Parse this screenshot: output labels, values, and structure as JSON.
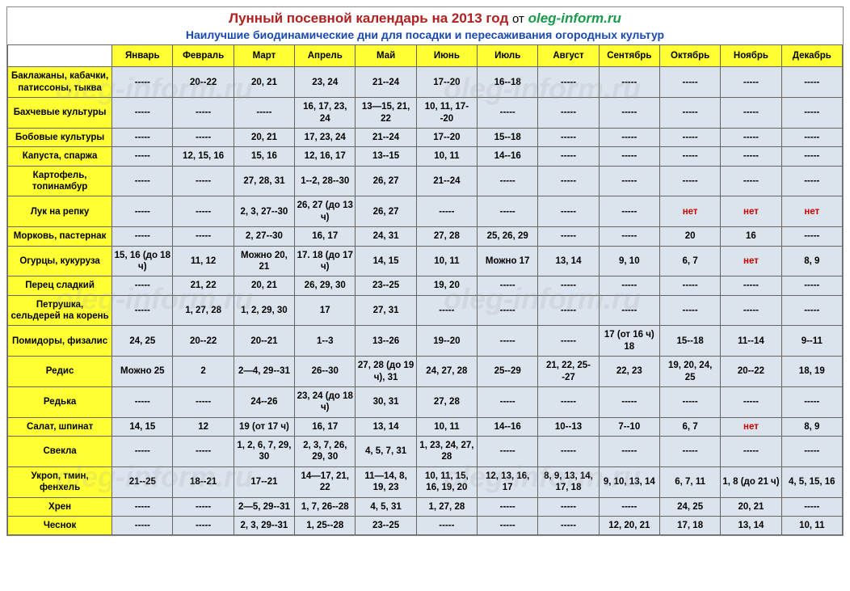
{
  "title": {
    "main": "Лунный посевной календарь на 2013 год",
    "from": "от",
    "site": "oleg-inform.ru",
    "title_color": "#b02020",
    "site_color": "#1a9a4a"
  },
  "subtitle": "Наилучшие биодинамические дни для посадки и пересаживания огородных культур",
  "subtitle_color": "#1a4ab0",
  "header_bg": "#ffff33",
  "cell_bg": "#dbe3ec",
  "net_color": "#cc0000",
  "border_color": "#666666",
  "font_family": "Arial",
  "dash": "-----",
  "months": [
    "Январь",
    "Февраль",
    "Март",
    "Апрель",
    "Май",
    "Июнь",
    "Июль",
    "Август",
    "Сентябрь",
    "Октябрь",
    "Ноябрь",
    "Декабрь"
  ],
  "rows": [
    {
      "crop": "Баклажаны, кабачки, патиссоны, тыква",
      "cells": [
        "-----",
        "20--22",
        "20, 21",
        "23, 24",
        "21--24",
        "17--20",
        "16--18",
        "-----",
        "-----",
        "-----",
        "-----",
        "-----"
      ]
    },
    {
      "crop": "Бахчевые культуры",
      "cells": [
        "-----",
        "-----",
        "-----",
        "16, 17, 23, 24",
        "13—15, 21, 22",
        "10, 11, 17--20",
        "-----",
        "-----",
        "-----",
        "-----",
        "-----",
        "-----"
      ]
    },
    {
      "crop": "Бобовые культуры",
      "cells": [
        "-----",
        "-----",
        "20, 21",
        "17, 23, 24",
        "21--24",
        "17--20",
        "15--18",
        "-----",
        "-----",
        "-----",
        "-----",
        "-----"
      ]
    },
    {
      "crop": "Капуста, спаржа",
      "cells": [
        "-----",
        "12, 15, 16",
        "15, 16",
        "12, 16, 17",
        "13--15",
        "10, 11",
        "14--16",
        "-----",
        "-----",
        "-----",
        "-----",
        "-----"
      ]
    },
    {
      "crop": "Картофель, топинамбур",
      "cells": [
        "-----",
        "-----",
        "27, 28, 31",
        "1--2, 28--30",
        "26, 27",
        "21--24",
        "-----",
        "-----",
        "-----",
        "-----",
        "-----",
        "-----"
      ]
    },
    {
      "crop": "Лук на репку",
      "cells": [
        "-----",
        "-----",
        "2, 3, 27--30",
        "26, 27 (до 13 ч)",
        "26, 27",
        "-----",
        "-----",
        "-----",
        "-----",
        "нет",
        "нет",
        "нет"
      ]
    },
    {
      "crop": "Морковь, пастернак",
      "cells": [
        "-----",
        "-----",
        "2, 27--30",
        "16, 17",
        "24, 31",
        "27, 28",
        "25, 26, 29",
        "-----",
        "-----",
        "20",
        "16",
        "-----"
      ]
    },
    {
      "crop": "Огурцы, кукуруза",
      "cells": [
        "15, 16 (до 18 ч)",
        "11, 12",
        "Можно 20, 21",
        "17. 18 (до 17 ч)",
        "14, 15",
        "10, 11",
        "Можно 17",
        "13, 14",
        "9, 10",
        "6, 7",
        "нет",
        "8, 9"
      ]
    },
    {
      "crop": "Перец сладкий",
      "cells": [
        "-----",
        "21, 22",
        "20, 21",
        "26, 29, 30",
        "23--25",
        "19, 20",
        "-----",
        "-----",
        "-----",
        "-----",
        "-----",
        "-----"
      ]
    },
    {
      "crop": "Петрушка, сельдерей на корень",
      "cells": [
        "-----",
        "1, 27, 28",
        "1, 2, 29, 30",
        "17",
        "27, 31",
        "-----",
        "-----",
        "-----",
        "-----",
        "-----",
        "-----",
        "-----"
      ]
    },
    {
      "crop": "Помидоры, физалис",
      "cells": [
        "24, 25",
        "20--22",
        "20--21",
        "1--3",
        "13--26",
        "19--20",
        "-----",
        "-----",
        "17 (от 16 ч) 18",
        "15--18",
        "11--14",
        "9--11"
      ]
    },
    {
      "crop": "Редис",
      "cells": [
        "Можно 25",
        "2",
        "2—4, 29--31",
        "26--30",
        "27, 28 (до 19 ч), 31",
        "24, 27, 28",
        "25--29",
        "21, 22, 25--27",
        "22, 23",
        "19, 20, 24, 25",
        "20--22",
        "18, 19"
      ]
    },
    {
      "crop": "Редька",
      "cells": [
        "-----",
        "-----",
        "24--26",
        "23, 24 (до 18 ч)",
        "30, 31",
        "27, 28",
        "-----",
        "-----",
        "-----",
        "-----",
        "-----",
        "-----"
      ]
    },
    {
      "crop": "Салат, шпинат",
      "cells": [
        "14, 15",
        "12",
        "19 (от 17 ч)",
        "16, 17",
        "13, 14",
        "10, 11",
        "14--16",
        "10--13",
        "7--10",
        "6, 7",
        "нет",
        "8, 9"
      ]
    },
    {
      "crop": "Свекла",
      "cells": [
        "-----",
        "-----",
        "1, 2, 6, 7, 29, 30",
        "2, 3, 7, 26, 29, 30",
        "4, 5, 7, 31",
        "1, 23, 24, 27, 28",
        "-----",
        "-----",
        "-----",
        "-----",
        "-----",
        "-----"
      ]
    },
    {
      "crop": "Укроп, тмин, фенхель",
      "cells": [
        "21--25",
        "18--21",
        "17--21",
        "14—17, 21, 22",
        "11—14, 8, 19, 23",
        "10, 11, 15, 16, 19, 20",
        "12, 13, 16, 17",
        "8, 9, 13, 14, 17, 18",
        "9, 10, 13, 14",
        "6, 7, 11",
        "1, 8 (до 21 ч)",
        "4, 5, 15, 16"
      ]
    },
    {
      "crop": "Хрен",
      "cells": [
        "-----",
        "-----",
        "2—5, 29--31",
        "1, 7, 26--28",
        "4, 5, 31",
        "1, 27, 28",
        "-----",
        "-----",
        "-----",
        "24, 25",
        "20, 21",
        "-----"
      ]
    },
    {
      "crop": "Чеснок",
      "cells": [
        "-----",
        "-----",
        "2, 3, 29--31",
        "1, 25--28",
        "23--25",
        "-----",
        "-----",
        "-----",
        "12, 20, 21",
        "17, 18",
        "13, 14",
        "10, 11"
      ]
    }
  ],
  "watermark_text": "oleg-inform.ru"
}
